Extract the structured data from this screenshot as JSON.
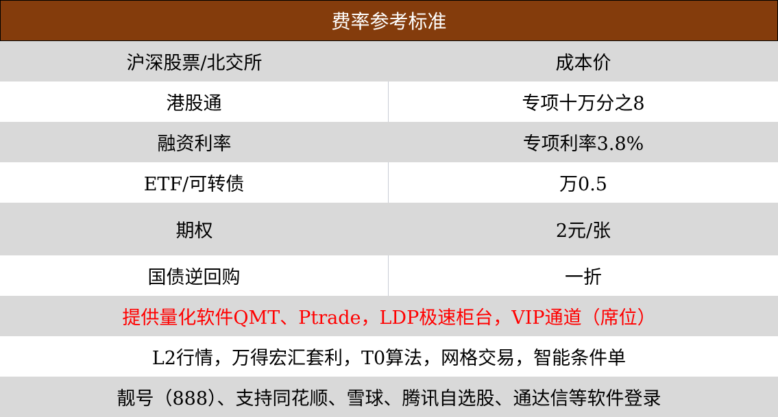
{
  "title": "费率参考标准",
  "rows": [
    {
      "label": "沪深股票/北交所",
      "value": "成本价"
    },
    {
      "label": "港股通",
      "value": "专项十万分之8"
    },
    {
      "label": "融资利率",
      "value": "专项利率3.8%"
    },
    {
      "label": "ETF/可转债",
      "value": "万0.5"
    },
    {
      "label": "期权",
      "value": "2元/张"
    },
    {
      "label": "国债逆回购",
      "value": "一折"
    }
  ],
  "notes": [
    {
      "text": "提供量化软件QMT、Ptrade，LDP极速柜台，VIP通道（席位）",
      "color": "#ff0000"
    },
    {
      "text": "L2行情，万得宏汇套利，T0算法，网格交易，智能条件单"
    },
    {
      "text": "靓号（888）、支持同花顺、雪球、腾讯自选股、通达信等软件登录"
    }
  ],
  "colors": {
    "header_bg": "#843c0c",
    "stripe": "#d9d9d9"
  }
}
